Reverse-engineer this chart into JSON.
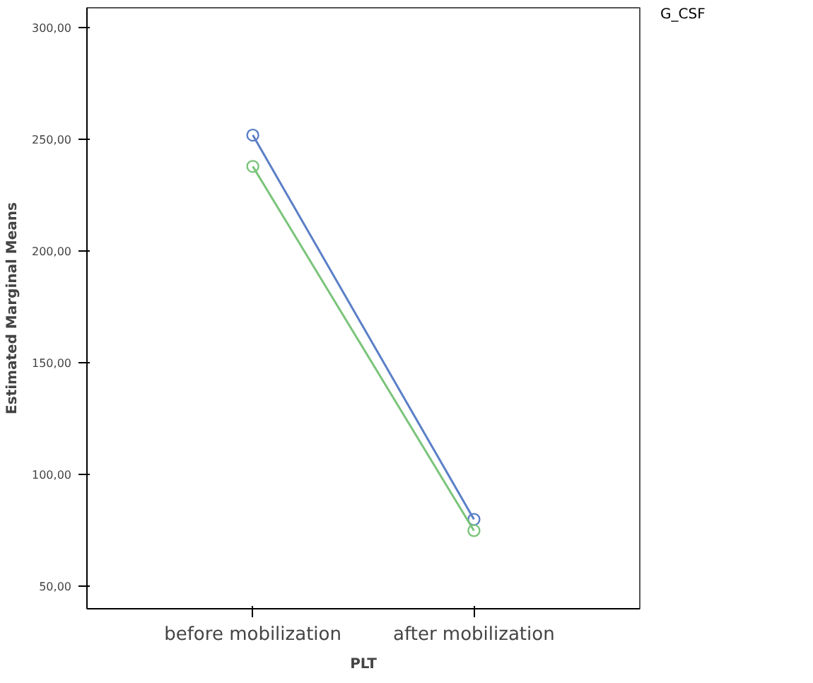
{
  "chart_data": {
    "type": "line",
    "xlabel": "PLT",
    "ylabel": "Estimated Marginal Means",
    "legend_title": "G_CSF",
    "categories": [
      "before mobilization",
      "after mobilization"
    ],
    "series": [
      {
        "color": "#5b7fc7",
        "values": [
          252,
          80
        ]
      },
      {
        "color": "#7ac47a",
        "values": [
          238,
          75
        ]
      }
    ],
    "ylim": [
      40,
      309
    ],
    "yticks": [
      {
        "value": 50,
        "label": "50,00"
      },
      {
        "value": 100,
        "label": "100,00"
      },
      {
        "value": 150,
        "label": "150,00"
      },
      {
        "value": 200,
        "label": "200,00"
      },
      {
        "value": 250,
        "label": "250,00"
      },
      {
        "value": 300,
        "label": "300,00"
      }
    ],
    "marker": "circle",
    "line_style": "solid",
    "grid": false
  }
}
